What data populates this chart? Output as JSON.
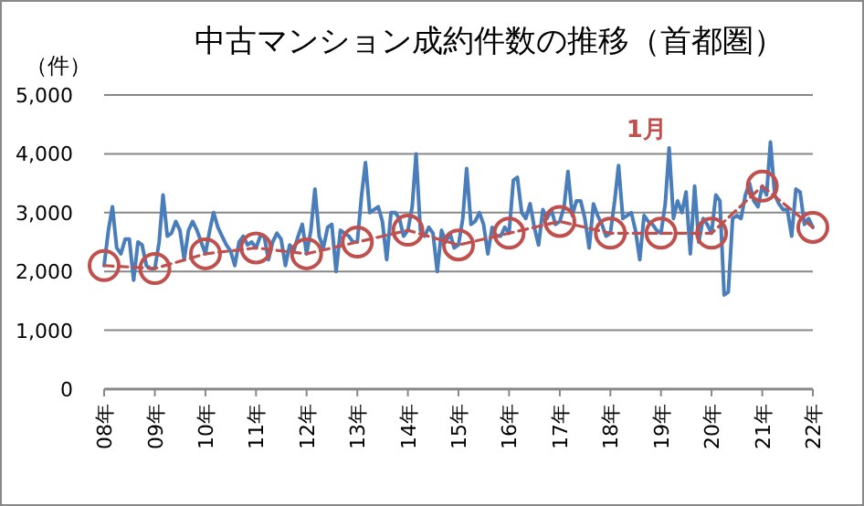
{
  "chart_data": {
    "type": "line",
    "title": "中古マンション成約件数の推移（首都圏）",
    "ylabel": "（件）",
    "x": [
      "2008-01",
      "2008-02",
      "2008-03",
      "2008-04",
      "2008-05",
      "2008-06",
      "2008-07",
      "2008-08",
      "2008-09",
      "2008-10",
      "2008-11",
      "2008-12",
      "2009-01",
      "2009-02",
      "2009-03",
      "2009-04",
      "2009-05",
      "2009-06",
      "2009-07",
      "2009-08",
      "2009-09",
      "2009-10",
      "2009-11",
      "2009-12",
      "2010-01",
      "2010-02",
      "2010-03",
      "2010-04",
      "2010-05",
      "2010-06",
      "2010-07",
      "2010-08",
      "2010-09",
      "2010-10",
      "2010-11",
      "2010-12",
      "2011-01",
      "2011-02",
      "2011-03",
      "2011-04",
      "2011-05",
      "2011-06",
      "2011-07",
      "2011-08",
      "2011-09",
      "2011-10",
      "2011-11",
      "2011-12",
      "2012-01",
      "2012-02",
      "2012-03",
      "2012-04",
      "2012-05",
      "2012-06",
      "2012-07",
      "2012-08",
      "2012-09",
      "2012-10",
      "2012-11",
      "2012-12",
      "2013-01",
      "2013-02",
      "2013-03",
      "2013-04",
      "2013-05",
      "2013-06",
      "2013-07",
      "2013-08",
      "2013-09",
      "2013-10",
      "2013-11",
      "2013-12",
      "2014-01",
      "2014-02",
      "2014-03",
      "2014-04",
      "2014-05",
      "2014-06",
      "2014-07",
      "2014-08",
      "2014-09",
      "2014-10",
      "2014-11",
      "2014-12",
      "2015-01",
      "2015-02",
      "2015-03",
      "2015-04",
      "2015-05",
      "2015-06",
      "2015-07",
      "2015-08",
      "2015-09",
      "2015-10",
      "2015-11",
      "2015-12",
      "2016-01",
      "2016-02",
      "2016-03",
      "2016-04",
      "2016-05",
      "2016-06",
      "2016-07",
      "2016-08",
      "2016-09",
      "2016-10",
      "2016-11",
      "2016-12",
      "2017-01",
      "2017-02",
      "2017-03",
      "2017-04",
      "2017-05",
      "2017-06",
      "2017-07",
      "2017-08",
      "2017-09",
      "2017-10",
      "2017-11",
      "2017-12",
      "2018-01",
      "2018-02",
      "2018-03",
      "2018-04",
      "2018-05",
      "2018-06",
      "2018-07",
      "2018-08",
      "2018-09",
      "2018-10",
      "2018-11",
      "2018-12",
      "2019-01",
      "2019-02",
      "2019-03",
      "2019-04",
      "2019-05",
      "2019-06",
      "2019-07",
      "2019-08",
      "2019-09",
      "2019-10",
      "2019-11",
      "2019-12",
      "2020-01",
      "2020-02",
      "2020-03",
      "2020-04",
      "2020-05",
      "2020-06",
      "2020-07",
      "2020-08",
      "2020-09",
      "2020-10",
      "2020-11",
      "2020-12",
      "2021-01",
      "2021-02",
      "2021-03",
      "2021-04",
      "2021-05",
      "2021-06",
      "2021-07",
      "2021-08",
      "2021-09",
      "2021-10",
      "2021-11",
      "2021-12",
      "2022-01"
    ],
    "series": [
      {
        "color": "#4a7ebb",
        "values": [
          2100,
          2700,
          3100,
          2400,
          2300,
          2550,
          2550,
          1850,
          2500,
          2450,
          2100,
          2050,
          2050,
          2500,
          3300,
          2600,
          2650,
          2850,
          2700,
          2200,
          2700,
          2850,
          2700,
          2500,
          2300,
          2700,
          3000,
          2750,
          2600,
          2450,
          2350,
          2100,
          2500,
          2600,
          2450,
          2500,
          2400,
          2600,
          2600,
          2200,
          2500,
          2650,
          2550,
          2100,
          2450,
          2350,
          2600,
          2800,
          2300,
          2700,
          3400,
          2600,
          2400,
          2750,
          2800,
          2000,
          2700,
          2650,
          2600,
          2500,
          2500,
          3300,
          3850,
          3000,
          3050,
          3100,
          2850,
          2200,
          3000,
          3000,
          2900,
          2600,
          2700,
          3100,
          4000,
          2700,
          2600,
          2750,
          2650,
          2000,
          2700,
          2500,
          2650,
          2400,
          2450,
          2900,
          3750,
          2800,
          2850,
          3000,
          2800,
          2300,
          2750,
          2600,
          2600,
          2750,
          2650,
          3550,
          3600,
          3000,
          2900,
          3150,
          2750,
          2450,
          3050,
          2900,
          3050,
          2800,
          2850,
          3100,
          3700,
          2950,
          3200,
          3200,
          2900,
          2400,
          3150,
          2950,
          2800,
          2600,
          2650,
          3200,
          3800,
          2900,
          2950,
          3000,
          2700,
          2200,
          2950,
          2850,
          2800,
          2700,
          2650,
          3150,
          4100,
          2900,
          3200,
          3000,
          3350,
          2300,
          3450,
          2500,
          2900,
          2800,
          2650,
          3300,
          3200,
          1600,
          1650,
          2900,
          2950,
          2900,
          3300,
          3500,
          3200,
          3100,
          3450,
          3300,
          4200,
          3300,
          3150,
          3050,
          3050,
          2600,
          3400,
          3350,
          2800,
          2900,
          2750
        ]
      },
      {
        "name": "1月",
        "color": "#c0504d",
        "line_style": "dashed",
        "marker": "circle",
        "x": [
          "2008-01",
          "2009-01",
          "2010-01",
          "2011-01",
          "2012-01",
          "2013-01",
          "2014-01",
          "2015-01",
          "2016-01",
          "2017-01",
          "2018-01",
          "2019-01",
          "2020-01",
          "2021-01",
          "2022-01"
        ],
        "values": [
          2100,
          2050,
          2300,
          2400,
          2300,
          2500,
          2700,
          2450,
          2650,
          2850,
          2650,
          2650,
          2650,
          3450,
          2750
        ]
      }
    ],
    "xlim": [
      "2008-01",
      "2022-01"
    ],
    "xticks": [
      {
        "value": "2008-01",
        "label": "08年"
      },
      {
        "value": "2009-01",
        "label": "09年"
      },
      {
        "value": "2010-01",
        "label": "10年"
      },
      {
        "value": "2011-01",
        "label": "11年"
      },
      {
        "value": "2012-01",
        "label": "12年"
      },
      {
        "value": "2013-01",
        "label": "13年"
      },
      {
        "value": "2014-01",
        "label": "14年"
      },
      {
        "value": "2015-01",
        "label": "15年"
      },
      {
        "value": "2016-01",
        "label": "16年"
      },
      {
        "value": "2017-01",
        "label": "17年"
      },
      {
        "value": "2018-01",
        "label": "18年"
      },
      {
        "value": "2019-01",
        "label": "19年"
      },
      {
        "value": "2020-01",
        "label": "20年"
      },
      {
        "value": "2021-01",
        "label": "21年"
      },
      {
        "value": "2022-01",
        "label": "22年"
      }
    ],
    "ylim": [
      0,
      5000
    ],
    "yticks": [
      0,
      {
        "value": 1000,
        "label": "1,000"
      },
      {
        "value": 2000,
        "label": "2,000"
      },
      {
        "value": 3000,
        "label": "3,000"
      },
      {
        "value": 4000,
        "label": "4,000"
      },
      {
        "value": 5000,
        "label": "5,000"
      }
    ],
    "grid": "y"
  }
}
